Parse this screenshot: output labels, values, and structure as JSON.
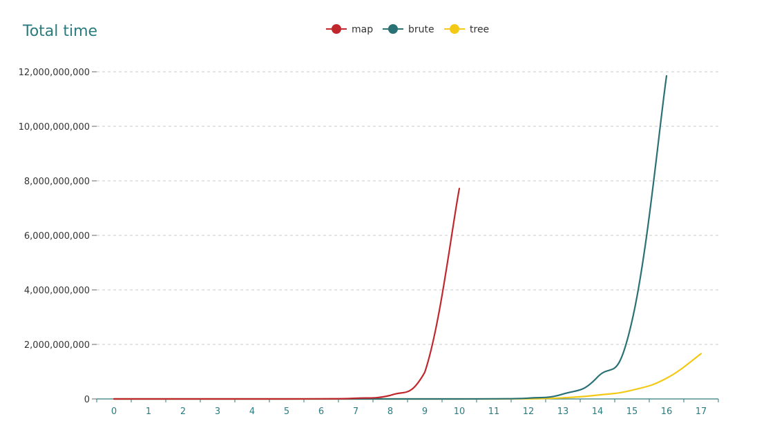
{
  "chart_data": {
    "type": "line",
    "title": "Total time",
    "xlabel": "",
    "ylabel": "",
    "categories": [
      "0",
      "1",
      "2",
      "3",
      "4",
      "5",
      "6",
      "7",
      "8",
      "9",
      "10",
      "11",
      "12",
      "13",
      "14",
      "15",
      "16",
      "17"
    ],
    "ylim": [
      0,
      12000000000
    ],
    "yticks": [
      0,
      2000000000,
      4000000000,
      6000000000,
      8000000000,
      10000000000,
      12000000000
    ],
    "ytick_labels": [
      "0",
      "2,000,000,000",
      "4,000,000,000",
      "6,000,000,000",
      "8,000,000,000",
      "10,000,000,000",
      "12,000,000,000"
    ],
    "grid": true,
    "legend_position": "top-center",
    "series": [
      {
        "name": "map",
        "color": "#c0272d",
        "x": [
          0,
          1,
          2,
          3,
          4,
          5,
          6,
          7,
          8,
          9,
          10
        ],
        "values": [
          0,
          0,
          0,
          0,
          0,
          0,
          5000000,
          25000000,
          130000000,
          980000000,
          7720000000
        ]
      },
      {
        "name": "brute",
        "color": "#2a7175",
        "x": [
          0,
          1,
          2,
          3,
          4,
          5,
          6,
          7,
          8,
          9,
          10,
          11,
          12,
          13,
          14,
          15,
          16
        ],
        "values": [
          0,
          0,
          0,
          0,
          0,
          0,
          0,
          0,
          0,
          0,
          0,
          5000000,
          30000000,
          180000000,
          800000000,
          2860000000,
          11850000000
        ]
      },
      {
        "name": "tree",
        "color": "#f4c915",
        "x": [
          0,
          1,
          2,
          3,
          4,
          5,
          6,
          7,
          8,
          9,
          10,
          11,
          12,
          13,
          14,
          15,
          16,
          17
        ],
        "values": [
          0,
          0,
          0,
          0,
          0,
          0,
          0,
          0,
          0,
          0,
          0,
          0,
          5000000,
          40000000,
          140000000,
          320000000,
          760000000,
          1660000000
        ]
      }
    ]
  }
}
